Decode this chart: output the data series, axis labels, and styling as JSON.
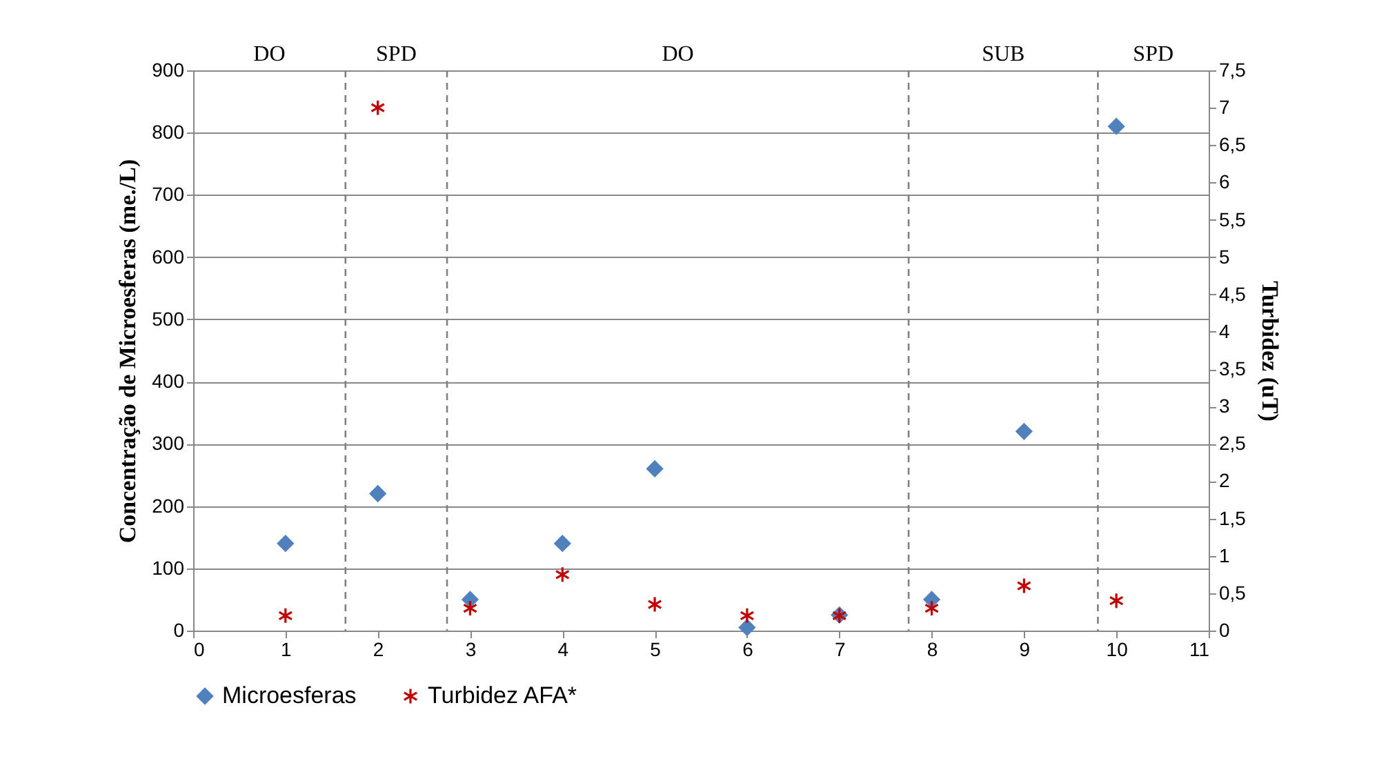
{
  "chart_data": {
    "type": "scatter",
    "ylabel": "Concentração de Microesferas (me./L)",
    "y2label": "Turbidez (uT)",
    "x": [
      1,
      2,
      3,
      4,
      5,
      6,
      7,
      8,
      9,
      10
    ],
    "series": [
      {
        "name": "Microesferas",
        "color": "#4f81bd",
        "marker": "diamond",
        "values": [
          140,
          220,
          50,
          140,
          260,
          5,
          25,
          50,
          320,
          810
        ]
      },
      {
        "name": "Turbidez AFA*",
        "color": "#c00000",
        "marker": "cross",
        "axis": "y2",
        "values": [
          0.2,
          7,
          0.3,
          0.75,
          0.35,
          0.2,
          0.2,
          0.3,
          0.6,
          0.4
        ]
      }
    ],
    "xlim": [
      0,
      11
    ],
    "xticks": [
      0,
      1,
      2,
      3,
      4,
      5,
      6,
      7,
      8,
      9,
      10,
      11
    ],
    "ylim": [
      0,
      900
    ],
    "yticks": [
      0,
      100,
      200,
      300,
      400,
      500,
      600,
      700,
      800,
      900
    ],
    "y2lim": [
      0,
      7.5
    ],
    "y2ticks": [
      0,
      {
        "value": 0.5,
        "label": "0,5"
      },
      1,
      {
        "value": 1.5,
        "label": "1,5"
      },
      2,
      {
        "value": 2.5,
        "label": "2,5"
      },
      3,
      {
        "value": 3.5,
        "label": "3,5"
      },
      4,
      {
        "value": 4.5,
        "label": "4,5"
      },
      5,
      {
        "value": 5.5,
        "label": "5,5"
      },
      6,
      {
        "value": 6.5,
        "label": "6,5"
      },
      7,
      {
        "value": 7.5,
        "label": "7,5"
      }
    ],
    "ref_lines": [
      {
        "axis": "x",
        "value": 1.65,
        "color": "#808080",
        "line_style": "dashed"
      },
      {
        "axis": "x",
        "value": 2.75,
        "color": "#808080",
        "line_style": "dashed"
      },
      {
        "axis": "x",
        "value": 7.75,
        "color": "#808080",
        "line_style": "dashed"
      },
      {
        "axis": "x",
        "value": 9.8,
        "color": "#808080",
        "line_style": "dashed"
      }
    ],
    "annotations": [
      "DO",
      "SPD",
      "DO",
      "SUB",
      "SPD"
    ],
    "grid": "y",
    "legend": "bottom"
  }
}
